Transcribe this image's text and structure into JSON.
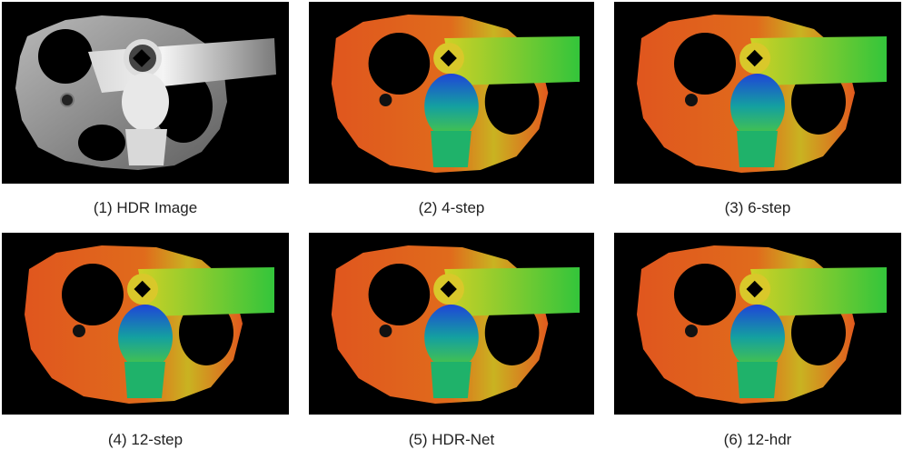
{
  "figure": {
    "panels": [
      {
        "caption": "(1) HDR Image",
        "kind": "grayscale"
      },
      {
        "caption": "(2) 4-step",
        "kind": "depth-map"
      },
      {
        "caption": "(3) 6-step",
        "kind": "depth-map"
      },
      {
        "caption": "(4) 12-step",
        "kind": "depth-map"
      },
      {
        "caption": "(5) HDR-Net",
        "kind": "depth-map"
      },
      {
        "caption": "(6) 12-hdr",
        "kind": "depth-map"
      }
    ],
    "colors": {
      "background": "#000000",
      "gear_gray": "#9a9a9a",
      "gear_near": "#e2571f",
      "bar_far": "#39c23a",
      "bust_mid": "#13a86a",
      "bust_far": "#1f45d8"
    }
  }
}
